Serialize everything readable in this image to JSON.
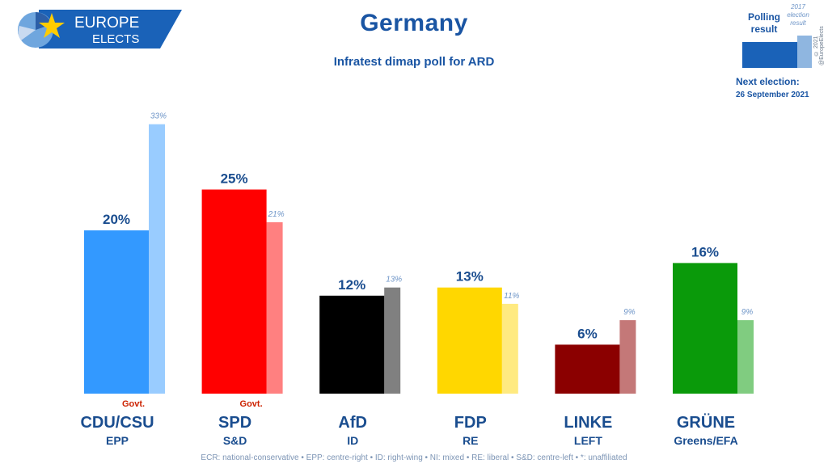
{
  "logo": {
    "line1": "EUROPE",
    "line2": "ELECTS"
  },
  "title": "Germany",
  "subtitle": "Infratest dimap poll for ARD",
  "legend": {
    "poll_label": "Polling result",
    "election_label": "2017 election result",
    "credit": "© 2021 @EuropeElects",
    "next_election_label": "Next election:",
    "next_election_date": "26 September 2021",
    "colors": {
      "poll": "#1a62b8",
      "election": "#8fb6e0"
    }
  },
  "footnote": "ECR: national-conservative • EPP: centre-right • ID: right-wing • NI: mixed • RE: liberal • S&D: centre-left • *: unaffiliated",
  "chart_data": {
    "type": "bar",
    "title": "Germany",
    "subtitle": "Infratest dimap poll for ARD",
    "ylim": [
      0,
      35
    ],
    "grid": false,
    "legend_placement": "top-right",
    "categories": [
      "CDU/CSU",
      "SPD",
      "AfD",
      "FDP",
      "LINKE",
      "GRÜNE"
    ],
    "groups": [
      "EPP",
      "S&D",
      "ID",
      "RE",
      "LEFT",
      "Greens/EFA"
    ],
    "govt": [
      true,
      true,
      false,
      false,
      false,
      false
    ],
    "govt_label": "Govt.",
    "series": [
      {
        "name": "Polling result",
        "values": [
          20,
          25,
          12,
          13,
          6,
          16
        ],
        "labels": [
          "20%",
          "25%",
          "12%",
          "13%",
          "6%",
          "16%"
        ]
      },
      {
        "name": "2017 election result",
        "values": [
          33,
          21,
          13,
          11,
          9,
          9
        ],
        "labels": [
          "33%",
          "21%",
          "13%",
          "11%",
          "9%",
          "9%"
        ]
      }
    ],
    "colors": {
      "poll": [
        "#3399ff",
        "#ff0000",
        "#000000",
        "#ffd700",
        "#8b0000",
        "#0a9a0a"
      ],
      "election": [
        "#99ccff",
        "#ff8080",
        "#808080",
        "#ffea80",
        "#c47878",
        "#80cc80"
      ]
    }
  }
}
